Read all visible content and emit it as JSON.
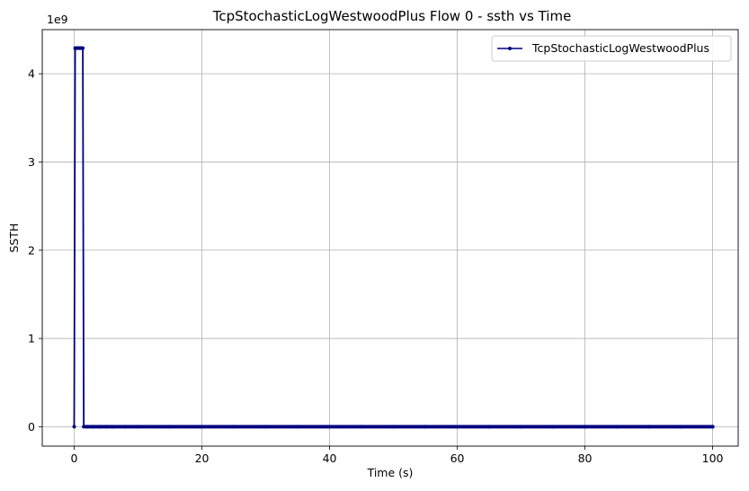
{
  "chart_data": {
    "type": "line",
    "title": "TcpStochasticLogWestwoodPlus Flow 0 - ssth vs Time",
    "xlabel": "Time (s)",
    "ylabel": "SSTH",
    "y_offset_label": "1e9",
    "xlim": [
      -5,
      104
    ],
    "ylim": [
      -0.22,
      4.5
    ],
    "y_scale_factor": 1000000000,
    "x_ticks": [
      0,
      20,
      40,
      60,
      80,
      100
    ],
    "x_tick_labels": [
      "0",
      "20",
      "40",
      "60",
      "80",
      "100"
    ],
    "y_ticks": [
      0,
      1,
      2,
      3,
      4
    ],
    "y_tick_labels": [
      "0",
      "1",
      "2",
      "3",
      "4"
    ],
    "grid": true,
    "legend_position": "upper-right",
    "series": [
      {
        "name": "TcpStochasticLogWestwoodPlus",
        "color": "#000080",
        "marker": "dot",
        "x": [
          0.0,
          0.15,
          0.3,
          0.45,
          0.6,
          0.75,
          0.9,
          1.05,
          1.2,
          1.35,
          1.5,
          1.8,
          2.0,
          3,
          4,
          5,
          6,
          8,
          10,
          15,
          20,
          25,
          30,
          35,
          40,
          45,
          50,
          55,
          60,
          65,
          70,
          75,
          80,
          85,
          90,
          95,
          100
        ],
        "y": [
          0,
          4.29,
          4.29,
          4.29,
          4.29,
          4.29,
          4.29,
          4.29,
          4.29,
          4.29,
          0,
          0,
          0,
          0,
          0,
          0,
          0,
          0,
          0,
          0,
          0,
          0,
          0,
          0,
          0,
          0,
          0,
          0,
          0,
          0,
          0,
          0,
          0,
          0,
          0,
          0,
          0
        ]
      }
    ]
  }
}
